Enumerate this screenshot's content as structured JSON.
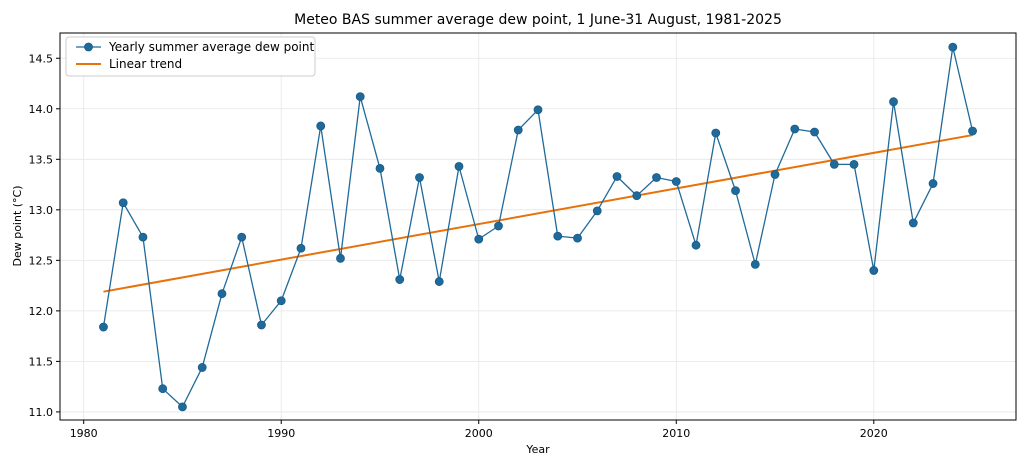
{
  "chart_data": {
    "type": "line",
    "title": "Meteo BAS summer average dew point, 1 June-31 August, 1981-2025",
    "xlabel": "Year",
    "ylabel": "Dew point (°C)",
    "xlim": [
      1978.8,
      2027.2
    ],
    "ylim": [
      10.92,
      14.75
    ],
    "x_ticks": [
      1980,
      1990,
      2000,
      2010,
      2020
    ],
    "y_ticks": [
      11.0,
      11.5,
      12.0,
      12.5,
      13.0,
      13.5,
      14.0,
      14.5
    ],
    "grid": true,
    "legend_position": "top-left",
    "x": [
      1981,
      1982,
      1983,
      1984,
      1985,
      1986,
      1987,
      1988,
      1989,
      1990,
      1991,
      1992,
      1993,
      1994,
      1995,
      1996,
      1997,
      1998,
      1999,
      2000,
      2001,
      2002,
      2003,
      2004,
      2005,
      2006,
      2007,
      2008,
      2009,
      2010,
      2011,
      2012,
      2013,
      2014,
      2015,
      2016,
      2017,
      2018,
      2019,
      2020,
      2021,
      2022,
      2023,
      2024,
      2025
    ],
    "series": [
      {
        "name": "Yearly summer average dew point",
        "color": "#1f6a9a",
        "marker": "circle",
        "values": [
          11.84,
          13.07,
          12.73,
          11.23,
          11.05,
          11.44,
          12.17,
          12.73,
          11.86,
          12.1,
          12.62,
          13.83,
          12.52,
          14.12,
          13.41,
          12.31,
          13.32,
          12.29,
          13.43,
          12.71,
          12.84,
          13.79,
          13.99,
          12.74,
          12.72,
          12.99,
          13.33,
          13.14,
          13.32,
          13.28,
          12.65,
          13.76,
          13.19,
          12.46,
          13.35,
          13.8,
          13.77,
          13.45,
          13.45,
          12.4,
          14.07,
          12.87,
          13.26,
          14.61,
          13.78
        ]
      },
      {
        "name": "Linear trend",
        "color": "#e8710a",
        "marker": "none",
        "values": [
          12.19,
          13.74
        ],
        "x": [
          1981,
          2025
        ]
      }
    ]
  }
}
